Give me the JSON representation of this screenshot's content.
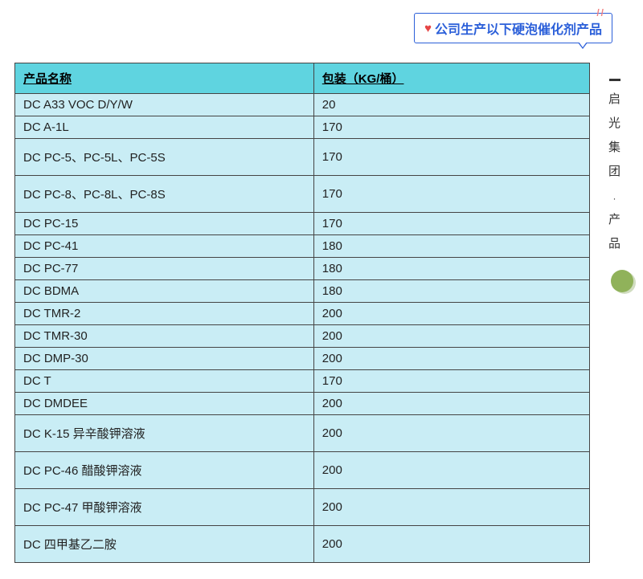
{
  "badge": {
    "text": "公司生产以下硬泡催化剂产品"
  },
  "sidebar": {
    "chars": [
      "启",
      "光",
      "集",
      "团",
      "·",
      "产",
      "品"
    ]
  },
  "table": {
    "columns": [
      "产品名称",
      "包装（KG/桶）"
    ],
    "col_widths_pct": [
      52,
      48
    ],
    "header_bg": "#5fd4e0",
    "row_bg": "#c9edf5",
    "border_color": "#444444",
    "rows": [
      {
        "name": "DC A33 VOC D/Y/W",
        "pack": "20",
        "tall": false
      },
      {
        "name": "DC A-1L",
        "pack": "170",
        "tall": false
      },
      {
        "name": "DC PC-5、PC-5L、PC-5S",
        "pack": "170",
        "tall": true
      },
      {
        "name": "DC PC-8、PC-8L、PC-8S",
        "pack": "170",
        "tall": true
      },
      {
        "name": "DC PC-15",
        "pack": "170",
        "tall": false
      },
      {
        "name": "DC PC-41",
        "pack": "180",
        "tall": false
      },
      {
        "name": "DC PC-77",
        "pack": "180",
        "tall": false
      },
      {
        "name": "DC BDMA",
        "pack": "180",
        "tall": false
      },
      {
        "name": "DC TMR-2",
        "pack": "200",
        "tall": false
      },
      {
        "name": "DC TMR-30",
        "pack": "200",
        "tall": false
      },
      {
        "name": "DC DMP-30",
        "pack": "200",
        "tall": false
      },
      {
        "name": "DC T",
        "pack": "170",
        "tall": false
      },
      {
        "name": "DC DMDEE",
        "pack": "200",
        "tall": false
      },
      {
        "name": "DC K-15 异辛酸钾溶液",
        "pack": "200",
        "tall": true
      },
      {
        "name": "DC PC-46 醋酸钾溶液",
        "pack": "200",
        "tall": true
      },
      {
        "name": "DC PC-47 甲酸钾溶液",
        "pack": "200",
        "tall": true
      },
      {
        "name": "DC  四甲基乙二胺",
        "pack": "200",
        "tall": true
      }
    ]
  },
  "colors": {
    "badge_border": "#2b5fd9",
    "badge_text": "#2b5fd9",
    "heart": "#e64545",
    "ticks": "#f28080",
    "green_dot": "#90b25a"
  }
}
